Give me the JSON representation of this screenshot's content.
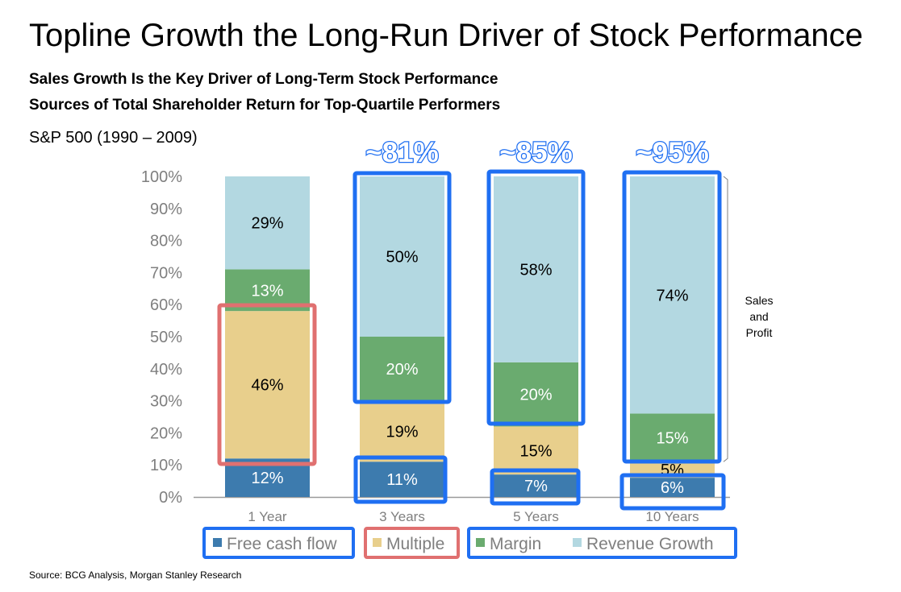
{
  "title": "Topline Growth the Long-Run Driver of Stock Performance",
  "subtitle_1": "Sales Growth Is the Key Driver of Long-Term Stock Performance",
  "subtitle_2": "Sources of Total Shareholder Return for Top-Quartile Performers",
  "period_label": "S&P 500 (1990 – 2009)",
  "source": "Source: BCG Analysis, Morgan Stanley Research",
  "colors": {
    "free_cash_flow": "#3d7bae",
    "multiple": "#e8cf8c",
    "margin": "#6aab6f",
    "revenue_growth": "#b3d8e1",
    "blue_highlight": "#1f6ff2",
    "red_highlight": "#e07070"
  },
  "chart_data": {
    "type": "bar",
    "stacked": true,
    "categories": [
      "1 Year",
      "3 Years",
      "5 Years",
      "10 Years"
    ],
    "series": [
      {
        "name": "Free cash flow",
        "values": [
          12,
          11,
          7,
          6
        ],
        "labels": [
          "12%",
          "11%",
          "7%",
          "6%"
        ]
      },
      {
        "name": "Multiple",
        "values": [
          46,
          19,
          15,
          5
        ],
        "labels": [
          "46%",
          "19%",
          "15%",
          "5%"
        ]
      },
      {
        "name": "Margin",
        "values": [
          13,
          20,
          20,
          15
        ],
        "labels": [
          "13%",
          "20%",
          "20%",
          "15%"
        ]
      },
      {
        "name": "Revenue Growth",
        "values": [
          29,
          50,
          58,
          74
        ],
        "labels": [
          "29%",
          "50%",
          "58%",
          "74%"
        ]
      }
    ],
    "ylim": [
      0,
      100
    ],
    "yticks": [
      "0%",
      "10%",
      "20%",
      "30%",
      "40%",
      "50%",
      "60%",
      "70%",
      "80%",
      "90%",
      "100%"
    ],
    "annotations": [
      "~81%",
      "~85%",
      "~95%"
    ],
    "bracket_label": [
      "Sales",
      "and",
      "Profit"
    ],
    "legend_position": "bottom"
  }
}
